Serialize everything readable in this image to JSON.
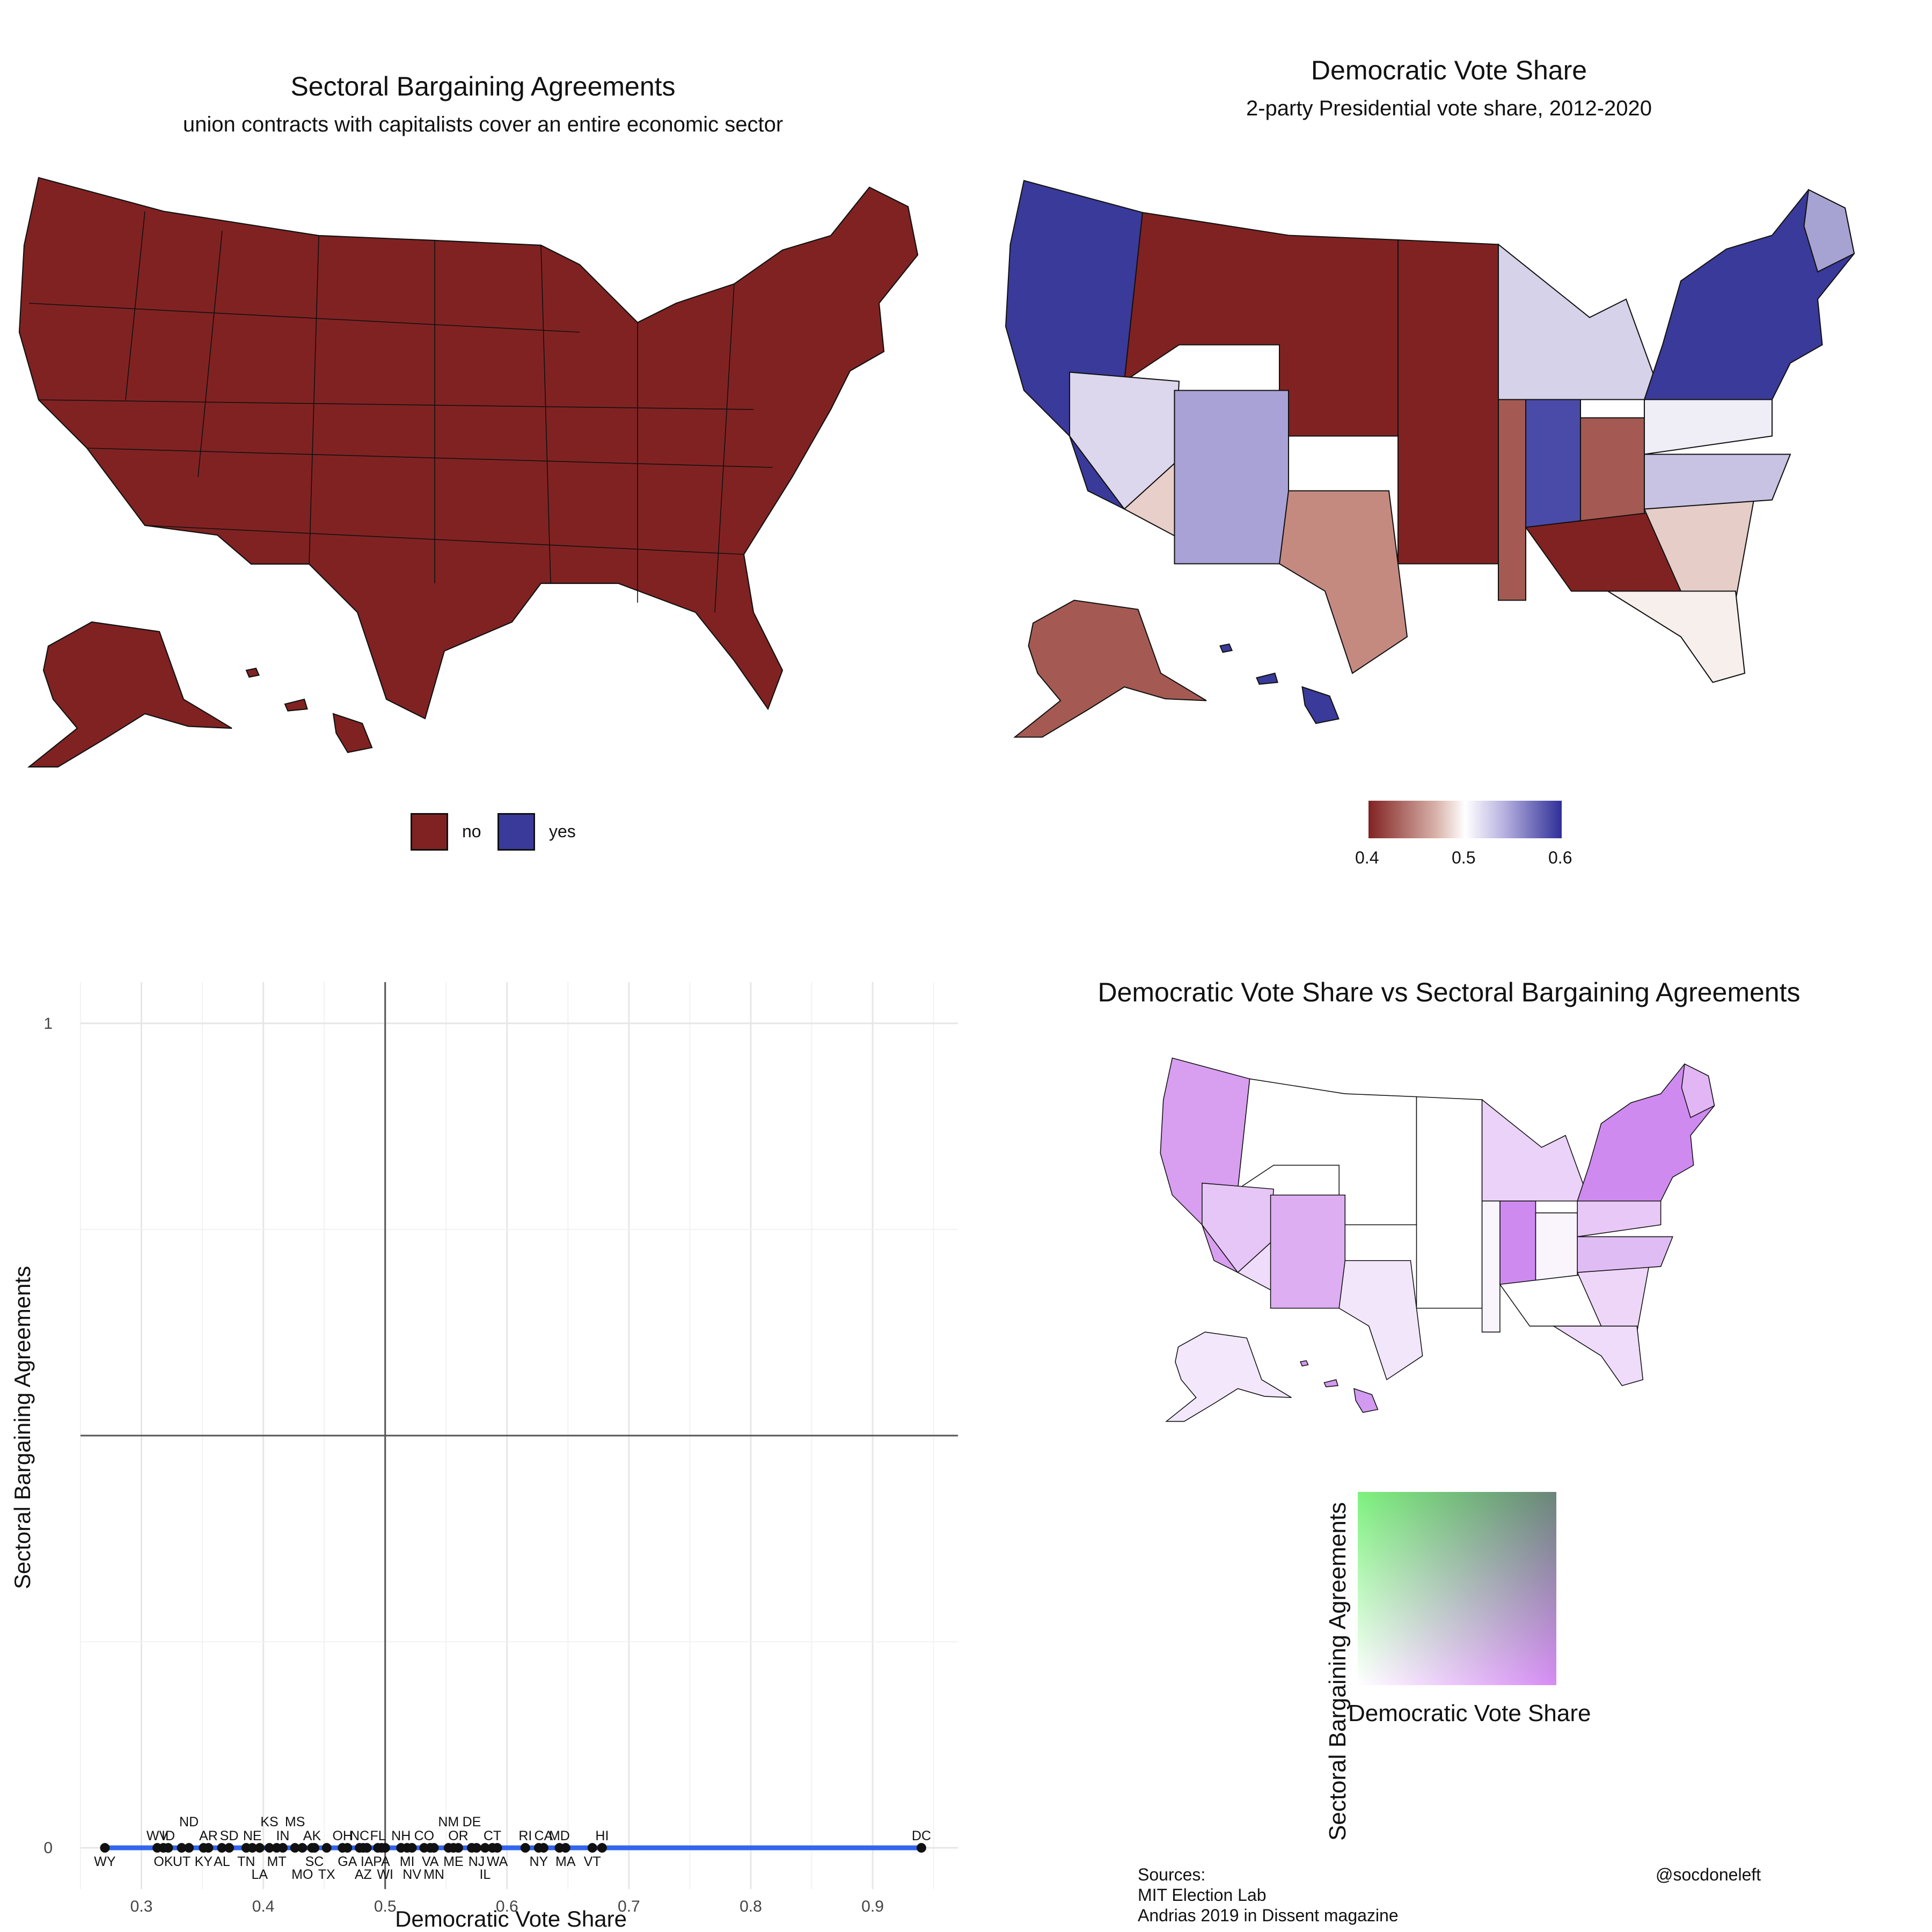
{
  "map_panel_1": {
    "title": "Sectoral Bargaining Agreements",
    "subtitle": "union contracts with capitalists cover an entire economic sector",
    "legend": [
      {
        "label": "no",
        "color": "#812222"
      },
      {
        "label": "yes",
        "color": "#3A3A9A"
      }
    ]
  },
  "map_panel_2": {
    "title": "Democratic Vote Share",
    "subtitle": "2-party Presidential vote share, 2012-2020",
    "legend": {
      "colors": [
        "#812222",
        "#ffffff",
        "#2f2f98"
      ],
      "ticks": [
        "0.4",
        "0.5",
        "0.6"
      ]
    }
  },
  "map_panel_4": {
    "title": "Democratic Vote Share vs Sectoral Bargaining Agreements",
    "legend": {
      "x_label": "Democratic Vote Share",
      "y_label": "Sectoral Bargaining Agreements",
      "colors": [
        "#ffffff",
        "#d68cf5",
        "#7ef27e",
        "#4b8a7a"
      ]
    }
  },
  "credits": {
    "sources_heading": "Sources:",
    "source_1": "MIT Election Lab",
    "source_2": "Andrias 2019 in Dissent magazine",
    "handle": "@socdoneleft"
  },
  "chart_data": {
    "type": "scatter",
    "title": "",
    "xlabel": "Democratic Vote Share",
    "ylabel": "Sectoral Bargaining Agreements",
    "xlim": [
      0.25,
      0.97
    ],
    "ylim": [
      -0.05,
      1.05
    ],
    "xticks": [
      "0.3",
      "0.4",
      "0.5",
      "0.6",
      "0.7",
      "0.8",
      "0.9"
    ],
    "yticks": [
      "0",
      "1"
    ],
    "reference_lines": {
      "x": 0.5,
      "y": 0.5
    },
    "fit_line": {
      "color": "#3366ee",
      "x": [
        0.27,
        0.94
      ],
      "y": [
        0,
        0
      ]
    },
    "points": [
      {
        "label": "WY",
        "x": 0.27,
        "y": 0,
        "side": "below"
      },
      {
        "label": "WV",
        "x": 0.313,
        "y": 0,
        "side": "above"
      },
      {
        "label": "OK",
        "x": 0.318,
        "y": 0,
        "side": "below"
      },
      {
        "label": "ID",
        "x": 0.322,
        "y": 0,
        "side": "above"
      },
      {
        "label": "UT",
        "x": 0.333,
        "y": 0,
        "side": "below"
      },
      {
        "label": "ND",
        "x": 0.339,
        "y": 0,
        "side": "above2"
      },
      {
        "label": "KY",
        "x": 0.351,
        "y": 0,
        "side": "below"
      },
      {
        "label": "AR",
        "x": 0.355,
        "y": 0,
        "side": "above"
      },
      {
        "label": "AL",
        "x": 0.366,
        "y": 0,
        "side": "below"
      },
      {
        "label": "SD",
        "x": 0.372,
        "y": 0,
        "side": "above"
      },
      {
        "label": "LA",
        "x": 0.397,
        "y": 0,
        "side": "below2"
      },
      {
        "label": "TN",
        "x": 0.386,
        "y": 0,
        "side": "below"
      },
      {
        "label": "NE",
        "x": 0.391,
        "y": 0,
        "side": "above"
      },
      {
        "label": "KS",
        "x": 0.405,
        "y": 0,
        "side": "above2"
      },
      {
        "label": "MT",
        "x": 0.411,
        "y": 0,
        "side": "below"
      },
      {
        "label": "IN",
        "x": 0.416,
        "y": 0,
        "side": "above"
      },
      {
        "label": "MS",
        "x": 0.426,
        "y": 0,
        "side": "above2"
      },
      {
        "label": "MO",
        "x": 0.432,
        "y": 0,
        "side": "below2"
      },
      {
        "label": "AK",
        "x": 0.44,
        "y": 0,
        "side": "above"
      },
      {
        "label": "SC",
        "x": 0.442,
        "y": 0,
        "side": "below"
      },
      {
        "label": "TX",
        "x": 0.452,
        "y": 0,
        "side": "below2"
      },
      {
        "label": "OH",
        "x": 0.465,
        "y": 0,
        "side": "above"
      },
      {
        "label": "GA",
        "x": 0.469,
        "y": 0,
        "side": "below"
      },
      {
        "label": "NC",
        "x": 0.479,
        "y": 0,
        "side": "above"
      },
      {
        "label": "AZ",
        "x": 0.482,
        "y": 0,
        "side": "below2"
      },
      {
        "label": "IA",
        "x": 0.485,
        "y": 0,
        "side": "below"
      },
      {
        "label": "FL",
        "x": 0.494,
        "y": 0,
        "side": "above"
      },
      {
        "label": "PA",
        "x": 0.497,
        "y": 0,
        "side": "below"
      },
      {
        "label": "WI",
        "x": 0.5,
        "y": 0,
        "side": "below2"
      },
      {
        "label": "NH",
        "x": 0.513,
        "y": 0,
        "side": "above"
      },
      {
        "label": "MI",
        "x": 0.518,
        "y": 0,
        "side": "below"
      },
      {
        "label": "NV",
        "x": 0.522,
        "y": 0,
        "side": "below2"
      },
      {
        "label": "CO",
        "x": 0.532,
        "y": 0,
        "side": "above"
      },
      {
        "label": "VA",
        "x": 0.537,
        "y": 0,
        "side": "below"
      },
      {
        "label": "MN",
        "x": 0.54,
        "y": 0,
        "side": "below2"
      },
      {
        "label": "NM",
        "x": 0.552,
        "y": 0,
        "side": "above2"
      },
      {
        "label": "ME",
        "x": 0.556,
        "y": 0,
        "side": "below"
      },
      {
        "label": "OR",
        "x": 0.56,
        "y": 0,
        "side": "above"
      },
      {
        "label": "DE",
        "x": 0.571,
        "y": 0,
        "side": "above2"
      },
      {
        "label": "NJ",
        "x": 0.575,
        "y": 0,
        "side": "below"
      },
      {
        "label": "IL",
        "x": 0.582,
        "y": 0,
        "side": "below2"
      },
      {
        "label": "CT",
        "x": 0.588,
        "y": 0,
        "side": "above"
      },
      {
        "label": "WA",
        "x": 0.592,
        "y": 0,
        "side": "below"
      },
      {
        "label": "RI",
        "x": 0.615,
        "y": 0,
        "side": "above"
      },
      {
        "label": "NY",
        "x": 0.626,
        "y": 0,
        "side": "below"
      },
      {
        "label": "CA",
        "x": 0.63,
        "y": 0,
        "side": "above"
      },
      {
        "label": "MD",
        "x": 0.643,
        "y": 0,
        "side": "above"
      },
      {
        "label": "MA",
        "x": 0.648,
        "y": 0,
        "side": "below"
      },
      {
        "label": "VT",
        "x": 0.67,
        "y": 0,
        "side": "below"
      },
      {
        "label": "HI",
        "x": 0.678,
        "y": 0,
        "side": "above"
      },
      {
        "label": "DC",
        "x": 0.94,
        "y": 0,
        "side": "above"
      }
    ]
  }
}
